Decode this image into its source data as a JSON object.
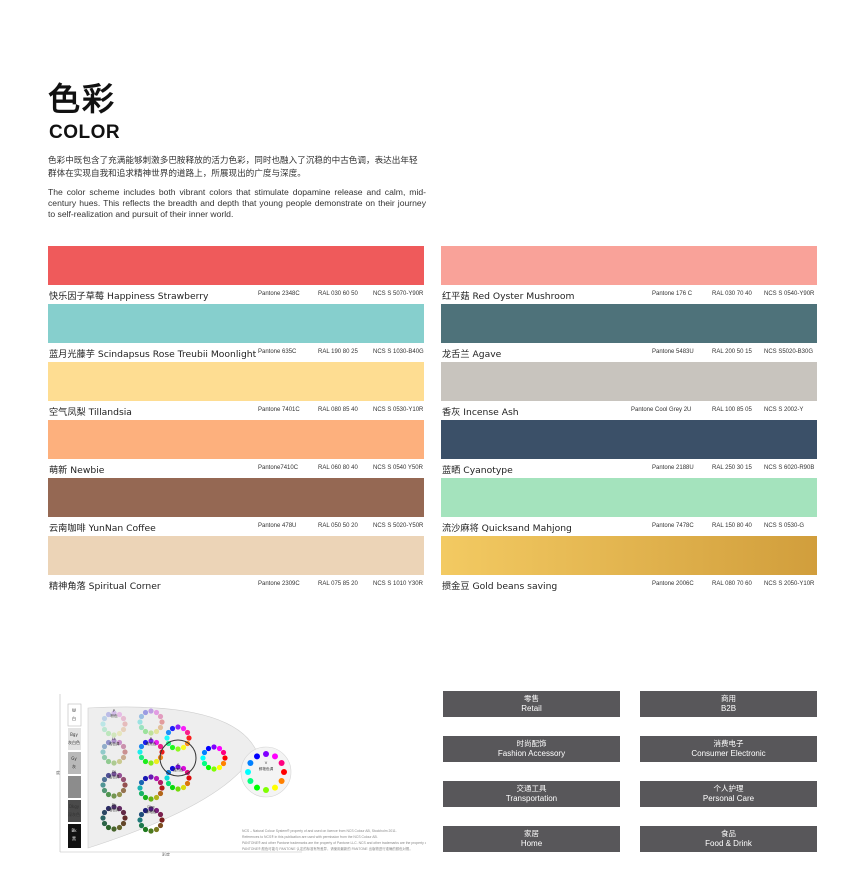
{
  "header": {
    "title_zh": "色彩",
    "title_en": "COLOR",
    "intro_zh": "色彩中既包含了充满能够刺激多巴胺释放的活力色彩，同时也融入了沉稳的中古色调，表达出年轻群体在实现自我和追求精神世界的道路上，所展现出的广度与深度。",
    "intro_en": "The color scheme includes both vibrant colors that stimulate dopamine release and calm, mid-century hues. This reflects the breadth and depth that young people demonstrate on their journey to self-realization and pursuit of their inner world."
  },
  "swatches_left": [
    {
      "name": "快乐因子草莓 Happiness Strawberry",
      "pantone": "Pantone 2348C",
      "ral": "RAL 030 60 50",
      "ncs": "NCS S 5070-Y90R",
      "color": "#ef5a5b"
    },
    {
      "name": "蓝月光藤芋  Scindapsus Rose Treubii Moonlight",
      "pantone": "Pantone 635C",
      "ral": "RAL 190 80 25",
      "ncs": "NCS S 1030-B40G",
      "color": "#86cfcd"
    },
    {
      "name": "空气凤梨 Tillandsia",
      "pantone": "Pantone 7401C",
      "ral": "RAL 080 85 40",
      "ncs": "NCS S 0530-Y10R",
      "color": "#fedd92"
    },
    {
      "name": "萌新 Newbie",
      "pantone": "Pantone7410C",
      "ral": "RAL 060 80 40",
      "ncs": "NCS S 0540 Y50R",
      "color": "#fdb07d"
    },
    {
      "name": "云南咖啡 YunNan Coffee",
      "pantone": "Pantone 478U",
      "ral": "RAL 050 50 20",
      "ncs": "NCS S 5020-Y50R",
      "color": "#956853"
    },
    {
      "name": "精神角落 Spiritual Corner",
      "pantone": "Pantone 2309C",
      "ral": "RAL 075 85 20",
      "ncs": "NCS S 1010 Y30R",
      "color": "#ecd4b7"
    }
  ],
  "swatches_right": [
    {
      "name": "红平菇 Red Oyster Mushroom",
      "pantone": "Pantone 176 C",
      "ral": "RAL 030 70 40",
      "ncs": "NCS S 0540-Y90R",
      "color": "#f9a299"
    },
    {
      "name": "龙舌兰 Agave",
      "pantone": "Pantone 5483U",
      "ral": "RAL 200 50 15",
      "ncs": "NCS S5020-B30G",
      "color": "#4e727a"
    },
    {
      "name": "香灰 Incense Ash",
      "pantone": "Pantone Cool Grey 2U",
      "ral": "RAL 100 85 05",
      "ncs": "NCS S 2002-Y",
      "color": "#c8c4be"
    },
    {
      "name": "蓝晒 Cyanotype",
      "pantone": "Pantone 2188U",
      "ral": "RAL 250 30 15",
      "ncs": "NCS S 6020-R90B",
      "color": "#3b5068"
    },
    {
      "name": "流沙麻将 Quicksand Mahjong",
      "pantone": "Pantone 7478C",
      "ral": "RAL 150 80 40",
      "ncs": "NCS S 0530-G",
      "color": "#a4e3bd"
    },
    {
      "name": "掼金豆 Gold beans saving",
      "pantone": "Pantone 2006C",
      "ral": "RAL 080 70 60",
      "ncs": "NCS S 2050-Y10R",
      "color": "#f3ca62",
      "color_end": "#d19e3c"
    }
  ],
  "categories": [
    {
      "zh": "零售",
      "en": "Retail"
    },
    {
      "zh": "商用",
      "en": "B2B"
    },
    {
      "zh": "时尚配饰",
      "en": "Fashion Accessory"
    },
    {
      "zh": "消费电子",
      "en": "Consumer Electronic"
    },
    {
      "zh": "交通工具",
      "en": "Transportation"
    },
    {
      "zh": "个人护理",
      "en": "Personal Care"
    },
    {
      "zh": "家居",
      "en": "Home"
    },
    {
      "zh": "食品",
      "en": "Food & Drink"
    }
  ],
  "wheel": {
    "y_axis_label": "明度",
    "x_axis_label": "彩度",
    "scale_labels": [
      "W",
      "白",
      "Bgy",
      "灰白色",
      "Gy",
      "灰",
      "Dkgy",
      "深灰色",
      "Bk",
      "黑"
    ],
    "cluster_labels": [
      "P",
      "粉色",
      "Lt",
      "浅色调",
      "B",
      "明亮色",
      "Dl",
      "浊色调",
      "S",
      "强烈色",
      "Dk",
      "暗色调",
      "Dkg",
      "深暗色",
      "V",
      "鲜艳色调"
    ]
  },
  "fineprint": [
    "NCS – Natural Colour System® property of and used on licence from NCS Colour AB, Stockholm 2011.",
    "References to NCS® in this publication are used with permission from the NCS Colour AB.",
    "PANTONE® and other Pantone trademarks are the property of Pantone LLC. NCS and other trademarks are the property of their respective owners.",
    "PANTONE® 颜色可能与 PANTONE 认定的标准有所差异，请使用最新的 PANTONE 出版物进行准确的颜色对照。"
  ]
}
